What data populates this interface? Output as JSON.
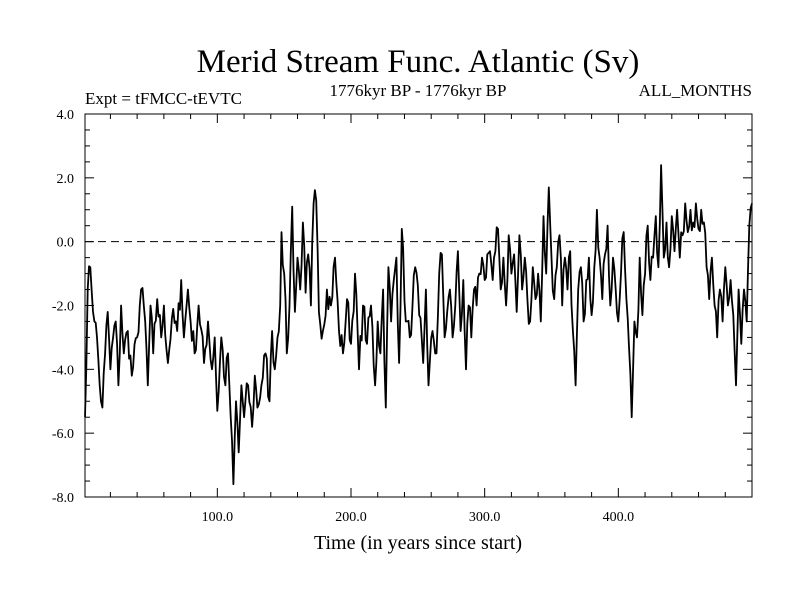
{
  "chart_data": {
    "type": "line",
    "title": "Merid Stream Func. Atlantic (Sv)",
    "subtitle_left": "Expt = tFMCC-tEVTC",
    "subtitle_center": "1776kyr BP - 1776kyr BP",
    "subtitle_right": "ALL_MONTHS",
    "xlabel": "Time (in years since start)",
    "ylabel": "",
    "xlim": [
      1,
      500
    ],
    "ylim": [
      -8,
      4
    ],
    "xticks": [
      100,
      200,
      300,
      400
    ],
    "xtick_labels": [
      "100.0",
      "200.0",
      "300.0",
      "400.0"
    ],
    "yticks": [
      4,
      2,
      0,
      -2,
      -4,
      -6,
      -8
    ],
    "ytick_labels": [
      "4.0",
      "2.0",
      "0.0",
      "-2.0",
      "-4.0",
      "-6.0",
      "-8.0"
    ],
    "reference_line": {
      "y": 0,
      "style": "dashed"
    },
    "grid": false,
    "line_color": "#000000",
    "series": [
      {
        "name": "Merid Stream Func. Atlantic",
        "x": [
          1,
          500
        ],
        "keyframes": [
          [
            1,
            -5.5
          ],
          [
            3,
            -1.5
          ],
          [
            5,
            -0.8
          ],
          [
            8,
            -2.5
          ],
          [
            10,
            -3.0
          ],
          [
            12,
            -4.5
          ],
          [
            14,
            -5.2
          ],
          [
            16,
            -3.5
          ],
          [
            18,
            -2.2
          ],
          [
            20,
            -4.0
          ],
          [
            22,
            -3.0
          ],
          [
            24,
            -2.5
          ],
          [
            26,
            -4.5
          ],
          [
            28,
            -2.0
          ],
          [
            30,
            -3.5
          ],
          [
            33,
            -2.8
          ],
          [
            36,
            -4.2
          ],
          [
            40,
            -3.0
          ],
          [
            43,
            -1.5
          ],
          [
            46,
            -2.5
          ],
          [
            48,
            -4.5
          ],
          [
            50,
            -2.0
          ],
          [
            52,
            -3.5
          ],
          [
            55,
            -1.8
          ],
          [
            58,
            -3.0
          ],
          [
            60,
            -2.0
          ],
          [
            63,
            -3.8
          ],
          [
            66,
            -2.4
          ],
          [
            70,
            -2.8
          ],
          [
            73,
            -1.2
          ],
          [
            75,
            -3.0
          ],
          [
            78,
            -1.5
          ],
          [
            80,
            -2.5
          ],
          [
            83,
            -3.5
          ],
          [
            86,
            -2.0
          ],
          [
            90,
            -3.8
          ],
          [
            93,
            -2.5
          ],
          [
            96,
            -4.0
          ],
          [
            98,
            -3.0
          ],
          [
            100,
            -5.3
          ],
          [
            103,
            -3.0
          ],
          [
            106,
            -4.5
          ],
          [
            108,
            -3.5
          ],
          [
            110,
            -5.5
          ],
          [
            112,
            -7.6
          ],
          [
            114,
            -5.0
          ],
          [
            116,
            -6.6
          ],
          [
            118,
            -4.5
          ],
          [
            120,
            -5.5
          ],
          [
            123,
            -4.5
          ],
          [
            126,
            -5.8
          ],
          [
            128,
            -4.2
          ],
          [
            130,
            -5.2
          ],
          [
            133,
            -4.5
          ],
          [
            136,
            -3.5
          ],
          [
            139,
            -5.0
          ],
          [
            141,
            -2.8
          ],
          [
            143,
            -4.0
          ],
          [
            145,
            -3.0
          ],
          [
            147,
            -2.0
          ],
          [
            148,
            0.3
          ],
          [
            150,
            -1.0
          ],
          [
            152,
            -3.5
          ],
          [
            154,
            -2.0
          ],
          [
            156,
            1.1
          ],
          [
            158,
            -2.2
          ],
          [
            160,
            -0.5
          ],
          [
            162,
            -1.5
          ],
          [
            164,
            0.6
          ],
          [
            166,
            -1.6
          ],
          [
            168,
            -0.4
          ],
          [
            170,
            -2.0
          ],
          [
            172,
            1.2
          ],
          [
            174,
            1.3
          ],
          [
            176,
            -2.2
          ],
          [
            179,
            -2.8
          ],
          [
            182,
            -1.5
          ],
          [
            185,
            -2.0
          ],
          [
            188,
            -0.5
          ],
          [
            191,
            -2.8
          ],
          [
            194,
            -3.5
          ],
          [
            197,
            -1.8
          ],
          [
            200,
            -3.2
          ],
          [
            203,
            -1.0
          ],
          [
            206,
            -4.0
          ],
          [
            209,
            -2.0
          ],
          [
            212,
            -3.2
          ],
          [
            215,
            -2.0
          ],
          [
            218,
            -4.5
          ],
          [
            220,
            -2.5
          ],
          [
            222,
            -3.5
          ],
          [
            224,
            -1.5
          ],
          [
            226,
            -5.2
          ],
          [
            228,
            -0.8
          ],
          [
            230,
            -2.5
          ],
          [
            232,
            -1.2
          ],
          [
            234,
            -0.5
          ],
          [
            236,
            -3.8
          ],
          [
            238,
            0.4
          ],
          [
            241,
            -2.5
          ],
          [
            244,
            -3.0
          ],
          [
            246,
            -2.0
          ],
          [
            248,
            -0.8
          ],
          [
            251,
            -2.3
          ],
          [
            254,
            -3.8
          ],
          [
            256,
            -1.5
          ],
          [
            258,
            -4.5
          ],
          [
            261,
            -2.8
          ],
          [
            264,
            -3.5
          ],
          [
            266,
            -1.0
          ],
          [
            268,
            -0.4
          ],
          [
            270,
            -3.0
          ],
          [
            272,
            -2.2
          ],
          [
            274,
            -1.5
          ],
          [
            276,
            -3.0
          ],
          [
            278,
            -2.0
          ],
          [
            280,
            -0.3
          ],
          [
            282,
            -2.8
          ],
          [
            284,
            -1.2
          ],
          [
            286,
            -4.0
          ],
          [
            288,
            -2.0
          ],
          [
            290,
            -3.0
          ],
          [
            292,
            -1.5
          ],
          [
            294,
            -2.0
          ],
          [
            296,
            -1.0
          ],
          [
            298,
            -0.5
          ],
          [
            300,
            -1.2
          ],
          [
            302,
            -0.4
          ],
          [
            304,
            -0.3
          ],
          [
            306,
            -1.2
          ],
          [
            308,
            -0.3
          ],
          [
            310,
            0.4
          ],
          [
            312,
            -1.5
          ],
          [
            314,
            -0.5
          ],
          [
            316,
            -2.0
          ],
          [
            318,
            0.2
          ],
          [
            320,
            -1.0
          ],
          [
            322,
            -0.4
          ],
          [
            324,
            -2.2
          ],
          [
            326,
            0.2
          ],
          [
            328,
            -1.5
          ],
          [
            330,
            -0.5
          ],
          [
            332,
            -1.8
          ],
          [
            334,
            -2.5
          ],
          [
            336,
            -0.8
          ],
          [
            338,
            -1.8
          ],
          [
            340,
            -1.0
          ],
          [
            342,
            -2.5
          ],
          [
            344,
            0.8
          ],
          [
            346,
            -1.0
          ],
          [
            348,
            1.7
          ],
          [
            350,
            -0.5
          ],
          [
            352,
            -1.8
          ],
          [
            354,
            -0.8
          ],
          [
            356,
            0.2
          ],
          [
            358,
            -2.0
          ],
          [
            360,
            -0.5
          ],
          [
            362,
            -1.5
          ],
          [
            364,
            -0.3
          ],
          [
            366,
            -2.8
          ],
          [
            368,
            -4.5
          ],
          [
            370,
            -1.5
          ],
          [
            372,
            -0.8
          ],
          [
            374,
            -2.5
          ],
          [
            376,
            -1.2
          ],
          [
            378,
            -0.5
          ],
          [
            380,
            -2.3
          ],
          [
            382,
            -0.8
          ],
          [
            384,
            1.0
          ],
          [
            386,
            -0.5
          ],
          [
            388,
            -1.8
          ],
          [
            390,
            -0.4
          ],
          [
            392,
            0.5
          ],
          [
            394,
            -2.0
          ],
          [
            396,
            -0.5
          ],
          [
            398,
            -1.5
          ],
          [
            400,
            -2.5
          ],
          [
            402,
            -1.0
          ],
          [
            404,
            0.3
          ],
          [
            406,
            -1.8
          ],
          [
            408,
            -3.3
          ],
          [
            410,
            -5.5
          ],
          [
            412,
            -2.5
          ],
          [
            414,
            -3.0
          ],
          [
            416,
            -0.5
          ],
          [
            418,
            -2.3
          ],
          [
            420,
            -1.0
          ],
          [
            422,
            0.5
          ],
          [
            424,
            -1.2
          ],
          [
            426,
            -0.5
          ],
          [
            428,
            0.8
          ],
          [
            430,
            -0.8
          ],
          [
            432,
            2.4
          ],
          [
            434,
            -0.5
          ],
          [
            436,
            0.6
          ],
          [
            438,
            -0.8
          ],
          [
            440,
            0.8
          ],
          [
            442,
            -0.3
          ],
          [
            444,
            1.0
          ],
          [
            446,
            -0.5
          ],
          [
            448,
            0.2
          ],
          [
            450,
            1.2
          ],
          [
            452,
            0.3
          ],
          [
            454,
            1.0
          ],
          [
            456,
            0.6
          ],
          [
            458,
            1.2
          ],
          [
            460,
            0.4
          ],
          [
            462,
            1.0
          ],
          [
            464,
            0.6
          ],
          [
            466,
            -0.8
          ],
          [
            468,
            -1.8
          ],
          [
            470,
            -0.5
          ],
          [
            472,
            -2.0
          ],
          [
            474,
            -3.0
          ],
          [
            476,
            -1.5
          ],
          [
            478,
            -2.5
          ],
          [
            480,
            -0.8
          ],
          [
            482,
            -2.0
          ],
          [
            484,
            -1.2
          ],
          [
            486,
            -2.3
          ],
          [
            488,
            -4.5
          ],
          [
            490,
            -1.5
          ],
          [
            492,
            -3.2
          ],
          [
            494,
            -1.5
          ],
          [
            496,
            -2.5
          ],
          [
            498,
            0.5
          ],
          [
            500,
            1.2
          ]
        ]
      }
    ]
  }
}
